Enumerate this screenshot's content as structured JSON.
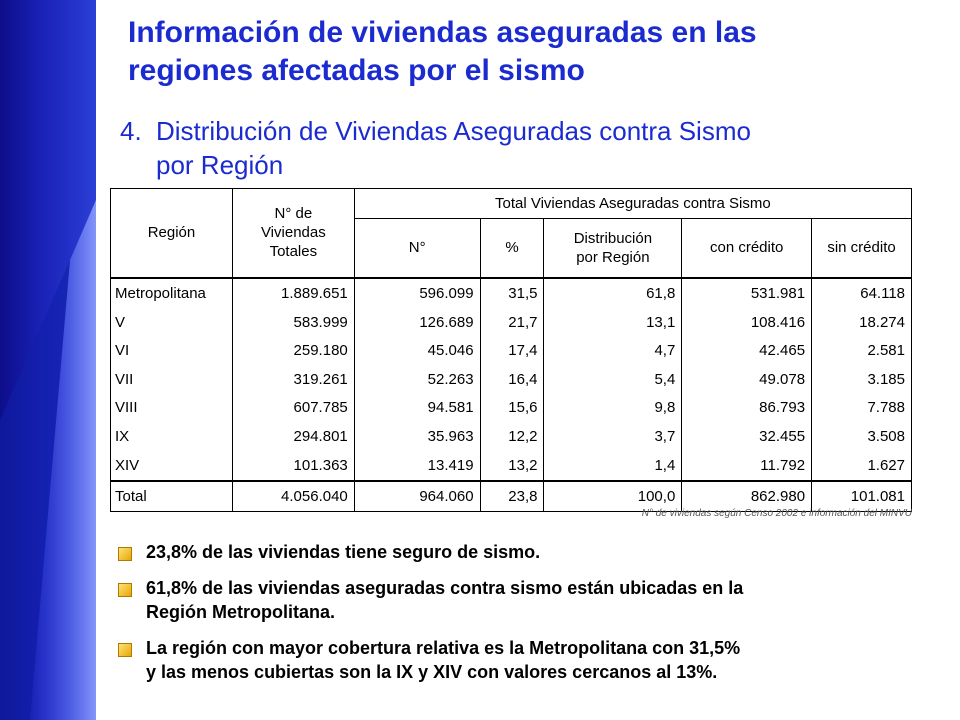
{
  "slide": {
    "title_line1": "Información de viviendas aseguradas en las",
    "title_line2": "regiones afectadas por el sismo",
    "subtitle_num": "4.",
    "subtitle_line1": "Distribución de Viviendas Aseguradas contra Sismo",
    "subtitle_line2": "por Región",
    "accent_color": "#1b2bd0",
    "band_color": "#1a22b8"
  },
  "table": {
    "header": {
      "region": "Región",
      "viviendas_l1": "N° de",
      "viviendas_l2": "Viviendas",
      "viviendas_l3": "Totales",
      "group": "Total Viviendas Aseguradas contra Sismo",
      "n": "N°",
      "pct": "%",
      "dist_l1": "Distribución",
      "dist_l2": "por Región",
      "con_credito": "con crédito",
      "sin_credito": "sin crédito"
    },
    "rows": [
      {
        "region": "Metropolitana",
        "viviendas": "1.889.651",
        "n": "596.099",
        "pct": "31,5",
        "dist": "61,8",
        "con": "531.981",
        "sin": "64.118"
      },
      {
        "region": "V",
        "viviendas": "583.999",
        "n": "126.689",
        "pct": "21,7",
        "dist": "13,1",
        "con": "108.416",
        "sin": "18.274"
      },
      {
        "region": "VI",
        "viviendas": "259.180",
        "n": "45.046",
        "pct": "17,4",
        "dist": "4,7",
        "con": "42.465",
        "sin": "2.581"
      },
      {
        "region": "VII",
        "viviendas": "319.261",
        "n": "52.263",
        "pct": "16,4",
        "dist": "5,4",
        "con": "49.078",
        "sin": "3.185"
      },
      {
        "region": "VIII",
        "viviendas": "607.785",
        "n": "94.581",
        "pct": "15,6",
        "dist": "9,8",
        "con": "86.793",
        "sin": "7.788"
      },
      {
        "region": "IX",
        "viviendas": "294.801",
        "n": "35.963",
        "pct": "12,2",
        "dist": "3,7",
        "con": "32.455",
        "sin": "3.508"
      },
      {
        "region": "XIV",
        "viviendas": "101.363",
        "n": "13.419",
        "pct": "13,2",
        "dist": "1,4",
        "con": "11.792",
        "sin": "1.627"
      }
    ],
    "total": {
      "region": "Total",
      "viviendas": "4.056.040",
      "n": "964.060",
      "pct": "23,8",
      "dist": "100,0",
      "con": "862.980",
      "sin": "101.081"
    },
    "note": "N° de viviendas según Censo 2002 e información del MINVU"
  },
  "bullets": {
    "b1": "23,8% de las viviendas tiene seguro de sismo.",
    "b2_l1": "61,8% de las viviendas aseguradas contra sismo están ubicadas en la",
    "b2_l2": "Región Metropolitana.",
    "b3_l1": "La región con mayor cobertura relativa es la Metropolitana con 31,5%",
    "b3_l2": "y las menos cubiertas son la IX y XIV con valores cercanos al 13%."
  }
}
